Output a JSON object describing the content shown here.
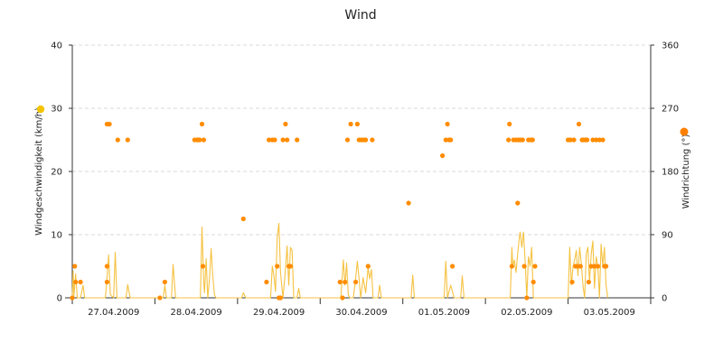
{
  "chart_data": {
    "type": "line",
    "title": "Wind",
    "x_categories": [
      "27.04.2009",
      "28.04.2009",
      "29.04.2009",
      "30.04.2009",
      "01.05.2009",
      "02.05.2009",
      "03.05.2009"
    ],
    "x_range": [
      0,
      7
    ],
    "y_left": {
      "label": "Windgeschwindigkeit (km/h)",
      "range": [
        0,
        40
      ],
      "ticks": [
        0,
        10,
        20,
        30,
        40
      ]
    },
    "y_right": {
      "label": "Windrichtung (°)",
      "range": [
        0,
        360
      ],
      "ticks": [
        0,
        90,
        180,
        270,
        360
      ]
    },
    "grid": "horizontal dashed",
    "colors": {
      "speed": "#f5c242",
      "direction": "#ff8c00",
      "legend_speed": "#f5c400",
      "legend_direction": "#ff7f00"
    },
    "series": [
      {
        "name": "Windgeschwindigkeit",
        "axis": "left",
        "style": "line",
        "points": [
          [
            0.0,
            0
          ],
          [
            0.01,
            4.2
          ],
          [
            0.02,
            0.3
          ],
          [
            0.04,
            3.8
          ],
          [
            0.06,
            0
          ],
          [
            0.1,
            0
          ],
          [
            0.13,
            2
          ],
          [
            0.15,
            0
          ],
          [
            0.4,
            0
          ],
          [
            0.42,
            3
          ],
          [
            0.44,
            6.8
          ],
          [
            0.46,
            0.5
          ],
          [
            0.5,
            0
          ],
          [
            0.52,
            7.2
          ],
          [
            0.54,
            0
          ],
          [
            0.65,
            0
          ],
          [
            0.67,
            2.1
          ],
          [
            0.7,
            0
          ],
          [
            1.1,
            0
          ],
          [
            1.12,
            2
          ],
          [
            1.14,
            0
          ],
          [
            1.2,
            0
          ],
          [
            1.22,
            5.3
          ],
          [
            1.25,
            0
          ],
          [
            1.55,
            0
          ],
          [
            1.57,
            11.2
          ],
          [
            1.59,
            2.5
          ],
          [
            1.6,
            0.8
          ],
          [
            1.62,
            6.2
          ],
          [
            1.64,
            0
          ],
          [
            1.66,
            3
          ],
          [
            1.68,
            7.8
          ],
          [
            1.7,
            3.5
          ],
          [
            1.72,
            0.5
          ],
          [
            1.74,
            0
          ],
          [
            2.05,
            0
          ],
          [
            2.07,
            0.8
          ],
          [
            2.1,
            0
          ],
          [
            2.4,
            0
          ],
          [
            2.42,
            5
          ],
          [
            2.44,
            3.5
          ],
          [
            2.46,
            1
          ],
          [
            2.48,
            9.5
          ],
          [
            2.5,
            11.8
          ],
          [
            2.52,
            4
          ],
          [
            2.55,
            0
          ],
          [
            2.57,
            3
          ],
          [
            2.6,
            8.2
          ],
          [
            2.62,
            2
          ],
          [
            2.64,
            8
          ],
          [
            2.66,
            7.5
          ],
          [
            2.68,
            0
          ],
          [
            2.72,
            0
          ],
          [
            2.74,
            1.5
          ],
          [
            2.76,
            0
          ],
          [
            3.25,
            0
          ],
          [
            3.27,
            4
          ],
          [
            3.28,
            6
          ],
          [
            3.3,
            2
          ],
          [
            3.32,
            5.5
          ],
          [
            3.34,
            0.5
          ],
          [
            3.36,
            0
          ],
          [
            3.4,
            0
          ],
          [
            3.42,
            2
          ],
          [
            3.45,
            5.8
          ],
          [
            3.47,
            3
          ],
          [
            3.49,
            0
          ],
          [
            3.52,
            3.2
          ],
          [
            3.55,
            0.8
          ],
          [
            3.58,
            4.8
          ],
          [
            3.6,
            3
          ],
          [
            3.62,
            4.5
          ],
          [
            3.64,
            0
          ],
          [
            3.7,
            0
          ],
          [
            3.72,
            2
          ],
          [
            3.74,
            0
          ],
          [
            4.1,
            0
          ],
          [
            4.12,
            3.6
          ],
          [
            4.14,
            0
          ],
          [
            4.5,
            0
          ],
          [
            4.52,
            5.8
          ],
          [
            4.54,
            0
          ],
          [
            4.58,
            2
          ],
          [
            4.6,
            1
          ],
          [
            4.62,
            0
          ],
          [
            4.7,
            0
          ],
          [
            4.72,
            3.5
          ],
          [
            4.74,
            0
          ],
          [
            5.3,
            0
          ],
          [
            5.32,
            8
          ],
          [
            5.33,
            5
          ],
          [
            5.35,
            6
          ],
          [
            5.37,
            4
          ],
          [
            5.39,
            7
          ],
          [
            5.41,
            9.5
          ],
          [
            5.42,
            10.4
          ],
          [
            5.44,
            8
          ],
          [
            5.46,
            10.4
          ],
          [
            5.48,
            6
          ],
          [
            5.5,
            0
          ],
          [
            5.52,
            6.5
          ],
          [
            5.54,
            5
          ],
          [
            5.56,
            8
          ],
          [
            5.58,
            0
          ],
          [
            6.0,
            0
          ],
          [
            6.02,
            8
          ],
          [
            6.04,
            2
          ],
          [
            6.06,
            5
          ],
          [
            6.08,
            6
          ],
          [
            6.1,
            7.5
          ],
          [
            6.12,
            3.5
          ],
          [
            6.14,
            8
          ],
          [
            6.16,
            5.5
          ],
          [
            6.18,
            2
          ],
          [
            6.2,
            0
          ],
          [
            6.22,
            7
          ],
          [
            6.24,
            8
          ],
          [
            6.26,
            2.5
          ],
          [
            6.28,
            7
          ],
          [
            6.3,
            9
          ],
          [
            6.32,
            1.5
          ],
          [
            6.34,
            6.5
          ],
          [
            6.36,
            5
          ],
          [
            6.38,
            0
          ],
          [
            6.4,
            8.5
          ],
          [
            6.42,
            5
          ],
          [
            6.44,
            8
          ],
          [
            6.46,
            2
          ],
          [
            6.48,
            0
          ]
        ]
      },
      {
        "name": "Windrichtung",
        "axis": "right",
        "style": "markers",
        "points": [
          [
            0.0,
            0
          ],
          [
            0.03,
            45
          ],
          [
            0.04,
            22.5
          ],
          [
            0.1,
            22.5
          ],
          [
            0.42,
            247.5
          ],
          [
            0.45,
            247.5
          ],
          [
            0.55,
            225
          ],
          [
            0.67,
            225
          ],
          [
            0.42,
            45
          ],
          [
            0.42,
            22.5
          ],
          [
            1.12,
            22.5
          ],
          [
            1.48,
            225
          ],
          [
            1.51,
            225
          ],
          [
            1.52,
            225
          ],
          [
            1.54,
            225
          ],
          [
            1.57,
            247.5
          ],
          [
            1.59,
            225
          ],
          [
            1.58,
            45
          ],
          [
            1.06,
            0
          ],
          [
            2.07,
            112.5
          ],
          [
            2.35,
            22.5
          ],
          [
            2.38,
            225
          ],
          [
            2.42,
            225
          ],
          [
            2.45,
            225
          ],
          [
            2.5,
            0
          ],
          [
            2.52,
            0
          ],
          [
            2.55,
            225
          ],
          [
            2.58,
            247.5
          ],
          [
            2.6,
            225
          ],
          [
            2.62,
            45
          ],
          [
            2.64,
            45
          ],
          [
            2.72,
            225
          ],
          [
            2.48,
            45
          ],
          [
            3.24,
            22.5
          ],
          [
            3.27,
            0
          ],
          [
            3.3,
            22.5
          ],
          [
            3.33,
            225
          ],
          [
            3.37,
            247.5
          ],
          [
            3.43,
            22.5
          ],
          [
            3.45,
            247.5
          ],
          [
            3.47,
            225
          ],
          [
            3.5,
            225
          ],
          [
            3.53,
            225
          ],
          [
            3.55,
            225
          ],
          [
            3.58,
            45
          ],
          [
            3.63,
            225
          ],
          [
            4.07,
            135
          ],
          [
            4.48,
            202.5
          ],
          [
            4.52,
            225
          ],
          [
            4.54,
            247.5
          ],
          [
            4.56,
            225
          ],
          [
            4.58,
            225
          ],
          [
            4.6,
            45
          ],
          [
            5.28,
            225
          ],
          [
            5.29,
            247.5
          ],
          [
            5.32,
            45
          ],
          [
            5.34,
            225
          ],
          [
            5.37,
            225
          ],
          [
            5.39,
            135
          ],
          [
            5.4,
            225
          ],
          [
            5.42,
            225
          ],
          [
            5.45,
            225
          ],
          [
            5.47,
            45
          ],
          [
            5.5,
            0
          ],
          [
            5.52,
            225
          ],
          [
            5.55,
            225
          ],
          [
            5.57,
            225
          ],
          [
            5.58,
            22.5
          ],
          [
            5.6,
            45
          ],
          [
            6.0,
            225
          ],
          [
            6.03,
            225
          ],
          [
            6.05,
            22.5
          ],
          [
            6.07,
            225
          ],
          [
            6.09,
            45
          ],
          [
            6.11,
            45
          ],
          [
            6.13,
            247.5
          ],
          [
            6.15,
            45
          ],
          [
            6.17,
            225
          ],
          [
            6.19,
            225
          ],
          [
            6.21,
            225
          ],
          [
            6.23,
            225
          ],
          [
            6.25,
            22.5
          ],
          [
            6.28,
            45
          ],
          [
            6.3,
            225
          ],
          [
            6.32,
            45
          ],
          [
            6.34,
            225
          ],
          [
            6.36,
            45
          ],
          [
            6.38,
            225
          ],
          [
            6.42,
            225
          ],
          [
            6.44,
            45
          ],
          [
            6.46,
            45
          ]
        ]
      }
    ]
  }
}
